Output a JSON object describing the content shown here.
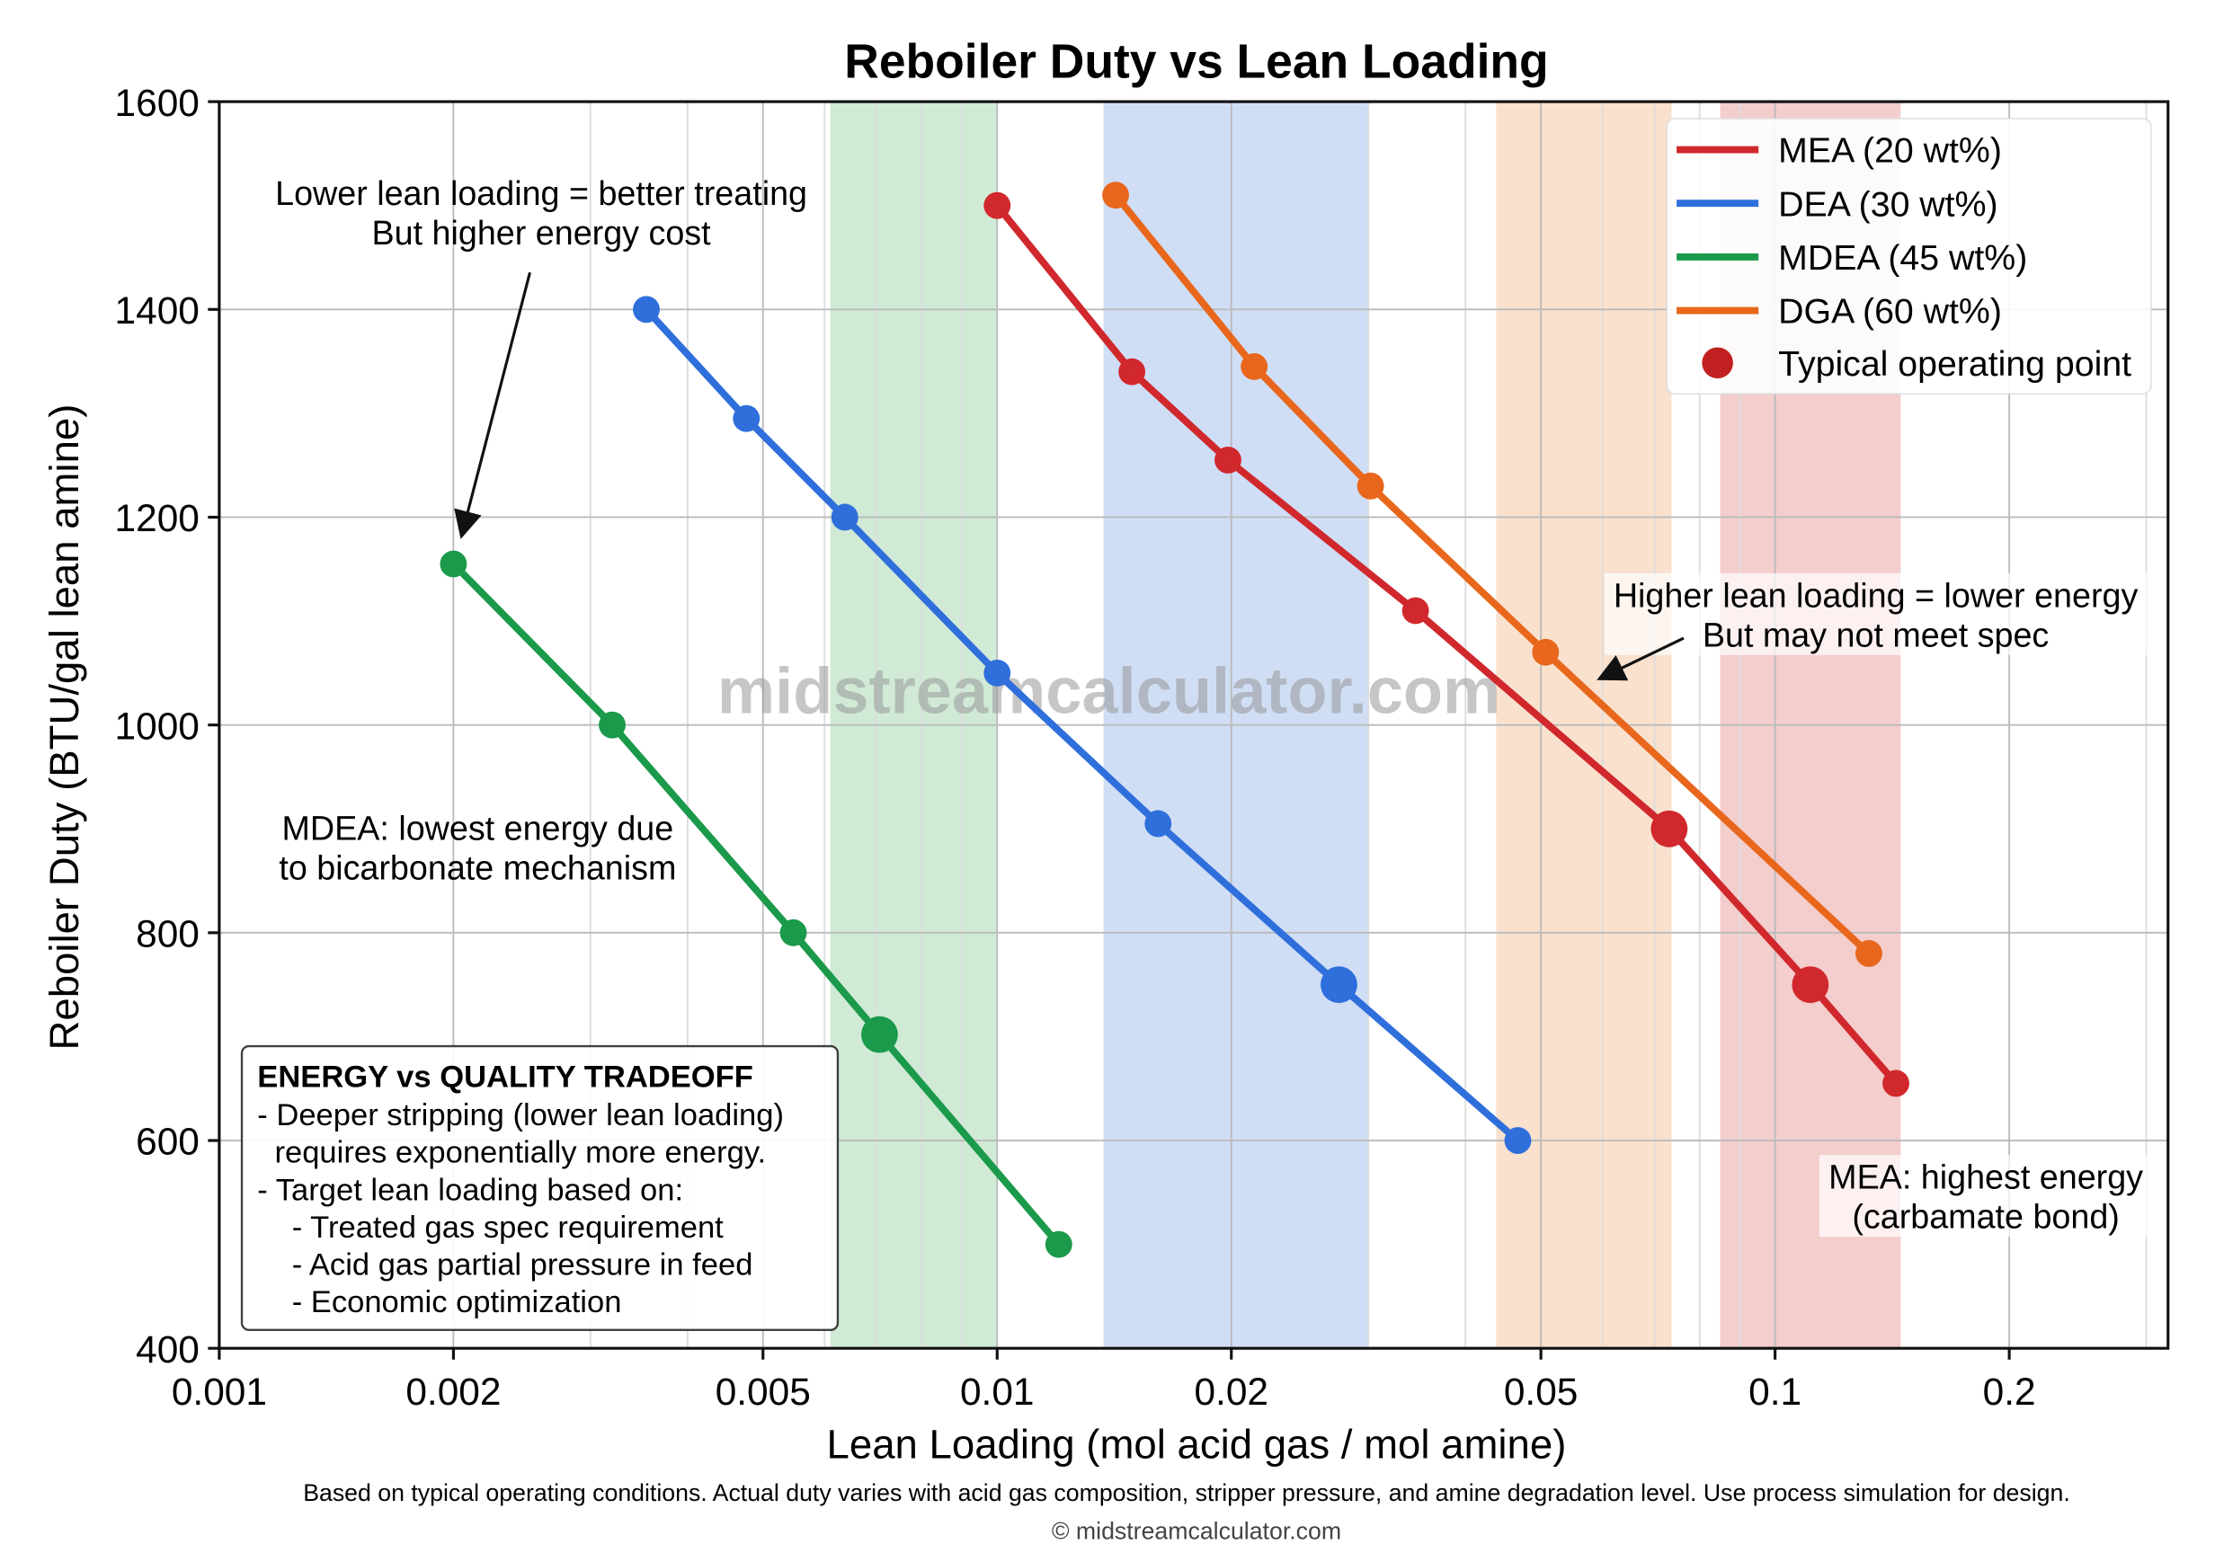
{
  "chart_data": {
    "type": "line",
    "title": "Reboiler Duty vs Lean Loading",
    "xlabel": "Lean Loading (mol acid gas / mol amine)",
    "ylabel": "Reboiler Duty (BTU/gal lean amine)",
    "xscale": "log",
    "xlim": [
      0.001,
      0.32
    ],
    "ylim": [
      400,
      1600
    ],
    "xticks": [
      0.001,
      0.002,
      0.005,
      0.01,
      0.02,
      0.05,
      0.1,
      0.2
    ],
    "xtick_labels": [
      "0.001",
      "0.002",
      "0.005",
      "0.01",
      "0.02",
      "0.05",
      "0.1",
      "0.2"
    ],
    "yticks": [
      400,
      600,
      800,
      1000,
      1200,
      1400,
      1600
    ],
    "ytick_labels": [
      "400",
      "600",
      "800",
      "1000",
      "1200",
      "1400",
      "1600"
    ],
    "grid": true,
    "legend_position": "top-right",
    "series": [
      {
        "name": "MEA (20 wt%)",
        "color": "#d0282c",
        "x": [
          0.01,
          0.0149,
          0.0198,
          0.0345,
          0.0731,
          0.111,
          0.143
        ],
        "y": [
          1500,
          1340,
          1255,
          1110,
          900,
          750,
          655
        ],
        "operating_points": [
          0.0731,
          0.111
        ],
        "band": [
          0.085,
          0.145
        ],
        "band_color": "#f2c4c4"
      },
      {
        "name": "DEA (30 wt%)",
        "color": "#2f6fdc",
        "x": [
          0.00354,
          0.00476,
          0.00637,
          0.01,
          0.0161,
          0.0275,
          0.0467
        ],
        "y": [
          1400,
          1295,
          1200,
          1050,
          905,
          750,
          600
        ],
        "operating_points": [
          0.0275
        ],
        "band": [
          0.0137,
          0.03
        ],
        "band_color": "#c8d8f3"
      },
      {
        "name": "MDEA (45 wt%)",
        "color": "#1a9a4a",
        "x": [
          0.002,
          0.0032,
          0.00547,
          0.00706,
          0.012
        ],
        "y": [
          1155,
          1000,
          800,
          702,
          500
        ],
        "operating_points": [
          0.00706
        ],
        "band": [
          0.0061,
          0.01
        ],
        "band_color": "#c8e6cf"
      },
      {
        "name": "DGA (60 wt%)",
        "color": "#e8671c",
        "x": [
          0.0142,
          0.0214,
          0.0302,
          0.0507,
          0.132
        ],
        "y": [
          1510,
          1345,
          1230,
          1070,
          780
        ],
        "operating_points": [],
        "band": [
          0.0438,
          0.0736
        ],
        "band_color": "#f8dcc6"
      }
    ],
    "legend_extra": {
      "label": "Typical operating point",
      "color": "#c0201f"
    },
    "annotations": [
      {
        "id": "lower",
        "lines": [
          "Lower lean loading = better treating",
          "But higher energy cost"
        ]
      },
      {
        "id": "higher",
        "lines": [
          "Higher lean loading = lower energy",
          "But may not meet spec"
        ]
      },
      {
        "id": "mdea",
        "lines": [
          "MDEA: lowest energy due",
          "to bicarbonate mechanism"
        ]
      },
      {
        "id": "mea",
        "lines": [
          "MEA: highest energy",
          "(carbamate bond)"
        ]
      }
    ],
    "tradeoff_box": {
      "title": "ENERGY vs QUALITY TRADEOFF",
      "lines": [
        "- Deeper stripping (lower lean loading)",
        "  requires exponentially more energy.",
        "- Target lean loading based on:",
        "    - Treated gas spec requirement",
        "    - Acid gas partial pressure in feed",
        "    - Economic optimization"
      ]
    },
    "watermark": "midstreamcalculator.com",
    "footnote": "Based on typical operating conditions. Actual duty varies with acid gas composition, stripper pressure, and amine degradation level. Use process simulation for design.",
    "copyright": "© midstreamcalculator.com"
  }
}
